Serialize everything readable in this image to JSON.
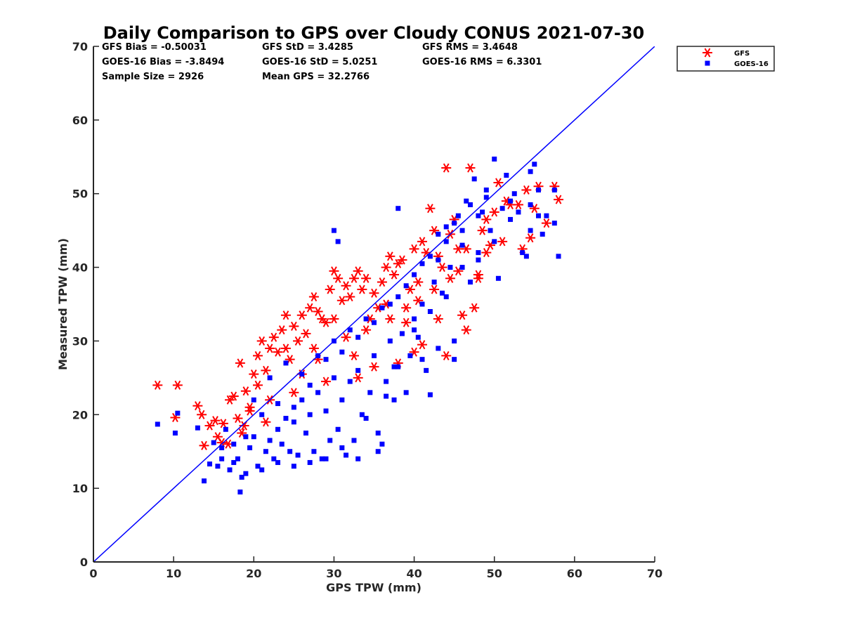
{
  "chart_data": {
    "type": "scatter",
    "title": "Daily Comparison to GPS over Cloudy CONUS 2021-07-30",
    "xlabel": "GPS TPW (mm)",
    "ylabel": "Measured TPW (mm)",
    "xlim": [
      0,
      70
    ],
    "ylim": [
      0,
      70
    ],
    "xticks": [
      0,
      10,
      20,
      30,
      40,
      50,
      60,
      70
    ],
    "yticks": [
      0,
      10,
      20,
      30,
      40,
      50,
      60,
      70
    ],
    "grid": false,
    "legend_position": "top-right outside",
    "stats": [
      "GFS Bias = -0.50031",
      "GFS StD = 3.4285",
      "GFS RMS = 3.4648",
      "GOES-16 Bias = -3.8494",
      "GOES-16 StD = 5.0251",
      "GOES-16 RMS = 6.3301",
      "Sample Size = 2926",
      "Mean GPS = 32.2766"
    ],
    "reference_line": {
      "x": [
        0,
        70
      ],
      "y": [
        0,
        70
      ],
      "color": "#0000ff"
    },
    "series": [
      {
        "name": "GFS",
        "marker": "asterisk",
        "color": "#ff0000",
        "points": [
          [
            8.0,
            24.0
          ],
          [
            10.5,
            24.0
          ],
          [
            10.2,
            19.6
          ],
          [
            13.0,
            21.2
          ],
          [
            13.5,
            20.0
          ],
          [
            13.8,
            15.8
          ],
          [
            14.5,
            18.5
          ],
          [
            15.2,
            19.2
          ],
          [
            15.5,
            17.0
          ],
          [
            16.0,
            16.2
          ],
          [
            16.8,
            16.0
          ],
          [
            17.0,
            22.0
          ],
          [
            17.5,
            22.5
          ],
          [
            18.0,
            19.5
          ],
          [
            18.3,
            27.0
          ],
          [
            18.5,
            17.5
          ],
          [
            19.0,
            23.2
          ],
          [
            19.5,
            20.5
          ],
          [
            20.0,
            25.5
          ],
          [
            20.5,
            28.0
          ],
          [
            21.0,
            30.0
          ],
          [
            21.5,
            26.0
          ],
          [
            22.0,
            29.0
          ],
          [
            22.5,
            30.5
          ],
          [
            23.0,
            28.5
          ],
          [
            23.5,
            31.5
          ],
          [
            24.0,
            29.0
          ],
          [
            24.5,
            27.5
          ],
          [
            25.0,
            32.0
          ],
          [
            25.5,
            30.0
          ],
          [
            26.0,
            33.5
          ],
          [
            26.5,
            31.0
          ],
          [
            27.0,
            34.5
          ],
          [
            27.5,
            29.0
          ],
          [
            28.0,
            34.0
          ],
          [
            28.5,
            33.0
          ],
          [
            29.0,
            32.5
          ],
          [
            29.5,
            37.0
          ],
          [
            30.0,
            33.0
          ],
          [
            30.5,
            38.5
          ],
          [
            31.0,
            35.5
          ],
          [
            31.5,
            37.5
          ],
          [
            32.0,
            36.0
          ],
          [
            32.5,
            38.5
          ],
          [
            33.0,
            39.5
          ],
          [
            33.5,
            37.0
          ],
          [
            34.0,
            38.5
          ],
          [
            34.5,
            33.0
          ],
          [
            35.0,
            36.5
          ],
          [
            35.5,
            34.5
          ],
          [
            36.0,
            38.0
          ],
          [
            36.5,
            40.0
          ],
          [
            37.0,
            41.5
          ],
          [
            37.5,
            39.0
          ],
          [
            38.0,
            40.5
          ],
          [
            38.5,
            41.0
          ],
          [
            39.0,
            34.5
          ],
          [
            39.5,
            37.0
          ],
          [
            40.0,
            42.5
          ],
          [
            40.5,
            38.0
          ],
          [
            41.0,
            43.5
          ],
          [
            41.5,
            42.0
          ],
          [
            42.0,
            48.0
          ],
          [
            42.5,
            45.0
          ],
          [
            43.0,
            41.5
          ],
          [
            43.5,
            40.0
          ],
          [
            44.0,
            53.5
          ],
          [
            44.5,
            44.5
          ],
          [
            45.0,
            46.5
          ],
          [
            45.5,
            42.5
          ],
          [
            46.0,
            33.5
          ],
          [
            46.5,
            31.5
          ],
          [
            47.0,
            53.5
          ],
          [
            47.5,
            34.5
          ],
          [
            48.0,
            39.0
          ],
          [
            48.5,
            45.0
          ],
          [
            49.0,
            42.0
          ],
          [
            49.5,
            43.0
          ],
          [
            50.0,
            47.5
          ],
          [
            50.5,
            51.5
          ],
          [
            51.0,
            43.5
          ],
          [
            52.0,
            48.5
          ],
          [
            53.0,
            48.5
          ],
          [
            53.5,
            42.5
          ],
          [
            54.0,
            50.5
          ],
          [
            54.5,
            44.0
          ],
          [
            55.0,
            48.0
          ],
          [
            55.5,
            51.0
          ],
          [
            56.5,
            46.0
          ],
          [
            57.5,
            51.0
          ],
          [
            58.0,
            49.2
          ],
          [
            38.0,
            27.0
          ],
          [
            40.0,
            28.5
          ],
          [
            44.0,
            28.0
          ],
          [
            41.0,
            29.5
          ],
          [
            35.0,
            26.5
          ],
          [
            33.0,
            25.0
          ],
          [
            29.0,
            24.5
          ],
          [
            26.0,
            25.5
          ],
          [
            22.0,
            22.0
          ],
          [
            19.5,
            21.0
          ],
          [
            24.0,
            33.5
          ],
          [
            27.5,
            36.0
          ],
          [
            30.0,
            39.5
          ],
          [
            42.5,
            37.0
          ],
          [
            45.5,
            39.5
          ],
          [
            48.0,
            38.5
          ],
          [
            36.5,
            35.0
          ],
          [
            31.5,
            30.5
          ],
          [
            34.0,
            31.5
          ],
          [
            39.0,
            32.5
          ],
          [
            43.0,
            33.0
          ],
          [
            20.5,
            24.0
          ],
          [
            18.8,
            18.5
          ],
          [
            16.2,
            18.8
          ],
          [
            21.5,
            19.0
          ],
          [
            25.0,
            23.0
          ],
          [
            28.0,
            27.5
          ],
          [
            32.5,
            28.0
          ],
          [
            37.0,
            33.0
          ],
          [
            40.5,
            35.5
          ],
          [
            44.5,
            38.5
          ],
          [
            46.5,
            42.5
          ],
          [
            49.0,
            46.5
          ],
          [
            51.5,
            49.0
          ]
        ]
      },
      {
        "name": "GOES-16",
        "marker": "square",
        "color": "#0000ff",
        "points": [
          [
            8.0,
            18.7
          ],
          [
            10.2,
            17.5
          ],
          [
            10.5,
            20.2
          ],
          [
            13.0,
            18.2
          ],
          [
            13.8,
            11.0
          ],
          [
            14.5,
            13.3
          ],
          [
            15.0,
            16.2
          ],
          [
            15.5,
            13.0
          ],
          [
            16.0,
            15.5
          ],
          [
            16.5,
            18.0
          ],
          [
            17.0,
            12.5
          ],
          [
            17.5,
            13.5
          ],
          [
            18.0,
            14.0
          ],
          [
            18.3,
            9.5
          ],
          [
            18.5,
            11.5
          ],
          [
            19.0,
            12.0
          ],
          [
            19.5,
            15.5
          ],
          [
            20.0,
            17.0
          ],
          [
            20.5,
            13.0
          ],
          [
            21.0,
            12.5
          ],
          [
            21.5,
            15.0
          ],
          [
            22.0,
            16.5
          ],
          [
            22.5,
            14.0
          ],
          [
            23.0,
            18.0
          ],
          [
            23.5,
            16.0
          ],
          [
            24.0,
            19.5
          ],
          [
            24.5,
            15.0
          ],
          [
            25.0,
            21.0
          ],
          [
            25.5,
            14.5
          ],
          [
            26.0,
            22.0
          ],
          [
            26.5,
            17.5
          ],
          [
            27.0,
            20.0
          ],
          [
            27.5,
            15.0
          ],
          [
            28.0,
            23.0
          ],
          [
            28.5,
            14.0
          ],
          [
            29.0,
            20.5
          ],
          [
            29.5,
            16.5
          ],
          [
            30.0,
            25.0
          ],
          [
            30.5,
            18.0
          ],
          [
            31.0,
            22.0
          ],
          [
            31.5,
            14.5
          ],
          [
            32.0,
            24.5
          ],
          [
            32.5,
            16.5
          ],
          [
            33.0,
            26.0
          ],
          [
            33.5,
            20.0
          ],
          [
            34.0,
            19.5
          ],
          [
            34.5,
            23.0
          ],
          [
            35.0,
            28.0
          ],
          [
            35.5,
            17.5
          ],
          [
            36.0,
            16.0
          ],
          [
            36.5,
            22.5
          ],
          [
            37.0,
            30.0
          ],
          [
            37.5,
            22.0
          ],
          [
            38.0,
            26.5
          ],
          [
            38.5,
            31.0
          ],
          [
            39.0,
            23.0
          ],
          [
            39.5,
            28.0
          ],
          [
            40.0,
            33.0
          ],
          [
            40.5,
            30.5
          ],
          [
            41.0,
            35.0
          ],
          [
            41.5,
            26.0
          ],
          [
            42.0,
            22.7
          ],
          [
            42.5,
            38.0
          ],
          [
            43.0,
            41.0
          ],
          [
            43.5,
            36.5
          ],
          [
            44.0,
            45.5
          ],
          [
            44.5,
            40.0
          ],
          [
            45.0,
            27.5
          ],
          [
            45.5,
            47.0
          ],
          [
            46.0,
            43.0
          ],
          [
            46.5,
            49.0
          ],
          [
            47.0,
            38.0
          ],
          [
            47.5,
            52.0
          ],
          [
            48.0,
            41.0
          ],
          [
            48.5,
            47.5
          ],
          [
            49.0,
            50.5
          ],
          [
            49.5,
            45.0
          ],
          [
            50.0,
            54.7
          ],
          [
            50.5,
            38.5
          ],
          [
            51.0,
            48.0
          ],
          [
            51.5,
            52.5
          ],
          [
            52.0,
            46.5
          ],
          [
            52.5,
            50.0
          ],
          [
            53.0,
            47.5
          ],
          [
            53.5,
            42.0
          ],
          [
            54.0,
            41.5
          ],
          [
            54.5,
            45.0
          ],
          [
            55.0,
            54.0
          ],
          [
            55.5,
            50.5
          ],
          [
            56.0,
            44.5
          ],
          [
            57.5,
            46.0
          ],
          [
            58.0,
            41.5
          ],
          [
            57.5,
            50.5
          ],
          [
            54.5,
            53.0
          ],
          [
            56.5,
            47.0
          ],
          [
            30.0,
            45.0
          ],
          [
            30.5,
            43.5
          ],
          [
            38.0,
            48.0
          ],
          [
            20.0,
            22.0
          ],
          [
            22.0,
            25.0
          ],
          [
            24.0,
            27.0
          ],
          [
            26.0,
            25.5
          ],
          [
            28.0,
            28.0
          ],
          [
            30.0,
            30.0
          ],
          [
            32.0,
            31.5
          ],
          [
            34.0,
            33.0
          ],
          [
            36.0,
            34.5
          ],
          [
            38.0,
            36.0
          ],
          [
            40.0,
            39.0
          ],
          [
            42.0,
            41.5
          ],
          [
            44.0,
            43.5
          ],
          [
            46.0,
            45.0
          ],
          [
            48.0,
            47.0
          ],
          [
            23.0,
            21.5
          ],
          [
            25.0,
            19.0
          ],
          [
            27.0,
            24.0
          ],
          [
            29.0,
            27.5
          ],
          [
            31.0,
            28.5
          ],
          [
            33.0,
            30.5
          ],
          [
            35.0,
            32.5
          ],
          [
            37.0,
            35.0
          ],
          [
            39.0,
            37.5
          ],
          [
            41.0,
            40.5
          ],
          [
            43.0,
            44.5
          ],
          [
            45.0,
            46.0
          ],
          [
            47.0,
            48.5
          ],
          [
            49.0,
            49.5
          ],
          [
            21.0,
            20.0
          ],
          [
            19.0,
            17.0
          ],
          [
            17.5,
            16.0
          ],
          [
            16.0,
            14.0
          ],
          [
            33.0,
            14.0
          ],
          [
            35.5,
            15.0
          ],
          [
            31.0,
            15.5
          ],
          [
            29.0,
            14.0
          ],
          [
            27.0,
            13.5
          ],
          [
            25.0,
            13.0
          ],
          [
            23.0,
            13.5
          ],
          [
            36.5,
            24.5
          ],
          [
            37.5,
            26.5
          ],
          [
            40.0,
            31.5
          ],
          [
            42.0,
            34.0
          ],
          [
            44.0,
            36.0
          ],
          [
            46.0,
            40.0
          ],
          [
            48.0,
            42.0
          ],
          [
            50.0,
            43.5
          ],
          [
            52.0,
            49.0
          ],
          [
            54.5,
            48.5
          ],
          [
            55.5,
            47.0
          ],
          [
            45.0,
            30.0
          ],
          [
            43.0,
            29.0
          ],
          [
            41.0,
            27.5
          ]
        ]
      }
    ]
  }
}
